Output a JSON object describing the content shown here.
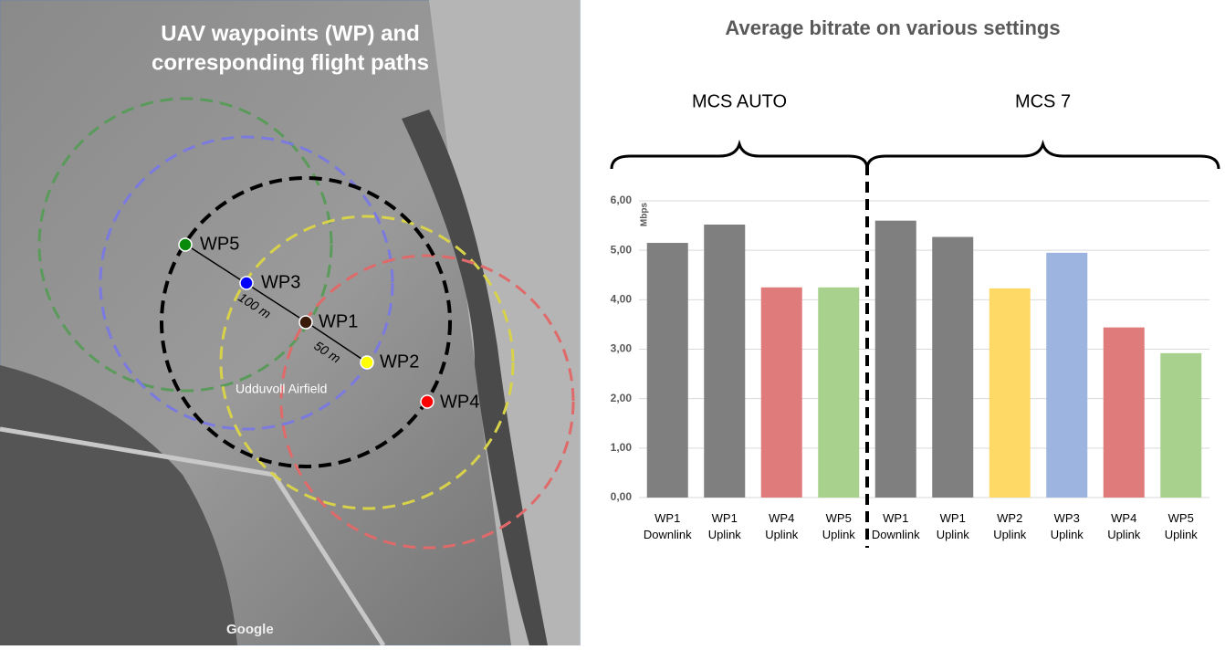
{
  "map": {
    "title_lines": [
      "UAV waypoints (WP) and",
      "corresponding flight paths"
    ],
    "waypoints": [
      "WP1",
      "WP2",
      "WP3",
      "WP4",
      "WP5"
    ],
    "distances": [
      "100 m",
      "50 m"
    ],
    "place": "Udduvoll Airfield",
    "attribution": "Google"
  },
  "chart_data": {
    "type": "bar",
    "title": "Average bitrate on various settings",
    "y_label": "Mbps",
    "groups": [
      {
        "name": "MCS AUTO",
        "size": 4
      },
      {
        "name": "MCS 7",
        "size": 6
      }
    ],
    "categories": [
      "WP1 Downlink",
      "WP1 Uplink",
      "WP4 Uplink",
      "WP5 Uplink",
      "WP1 Downlink",
      "WP1 Uplink",
      "WP2 Uplink",
      "WP3 Uplink",
      "WP4 Uplink",
      "WP5 Uplink"
    ],
    "values": [
      5.15,
      5.52,
      4.25,
      4.25,
      5.6,
      5.27,
      4.23,
      4.95,
      3.44,
      2.92
    ],
    "colors": [
      "#7f7f7f",
      "#7f7f7f",
      "#e07b7b",
      "#a9d18e",
      "#7f7f7f",
      "#7f7f7f",
      "#ffd966",
      "#9db3e0",
      "#e07b7b",
      "#a9d18e"
    ],
    "ylim": [
      0,
      6
    ],
    "yticks": [
      {
        "value": 0,
        "label": "0,00"
      },
      {
        "value": 1,
        "label": "1,00"
      },
      {
        "value": 2,
        "label": "2,00"
      },
      {
        "value": 3,
        "label": "3,00"
      },
      {
        "value": 4,
        "label": "4,00"
      },
      {
        "value": 5,
        "label": "5,00"
      },
      {
        "value": 6,
        "label": "6,00"
      }
    ],
    "grid": true
  }
}
